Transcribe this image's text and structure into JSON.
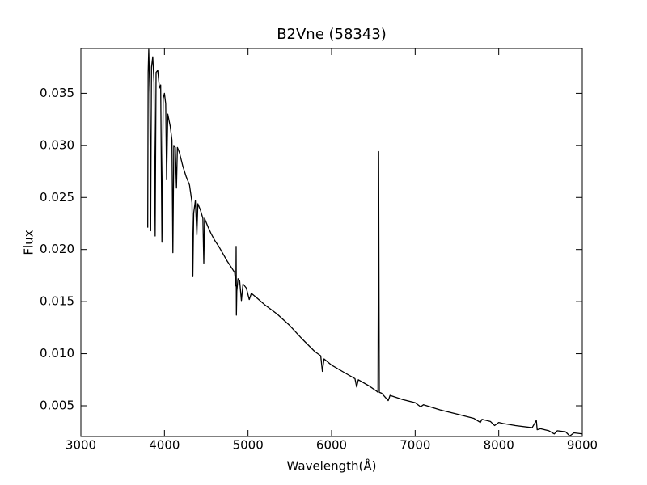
{
  "chart_data": {
    "type": "line",
    "title": "B2Vne (58343)",
    "x_label": "Wavelength(Å)",
    "y_label": "Flux",
    "xlim": [
      3000,
      9000
    ],
    "xticks": [
      3000,
      4000,
      5000,
      6000,
      7000,
      8000,
      9000
    ],
    "ylim": [
      0.00205,
      0.0393
    ],
    "yticks": [
      0.005,
      {
        "value": 0.01,
        "label": "0.010"
      },
      0.015,
      {
        "value": 0.02,
        "label": "0.020"
      },
      0.025,
      {
        "value": 0.03,
        "label": "0.030"
      },
      0.035
    ],
    "grid": false,
    "series": [
      {
        "name": "B2Vne (58343)",
        "color": "#000000",
        "x": [
          3800,
          3805,
          3812,
          3825,
          3835,
          3845,
          3860,
          3875,
          3889,
          3900,
          3920,
          3940,
          3955,
          3970,
          3985,
          4000,
          4015,
          4026,
          4040,
          4070,
          4090,
          4101,
          4112,
          4130,
          4144,
          4155,
          4180,
          4220,
          4260,
          4300,
          4330,
          4340,
          4350,
          4370,
          4388,
          4400,
          4430,
          4460,
          4471,
          4480,
          4520,
          4560,
          4600,
          4650,
          4700,
          4750,
          4800,
          4840,
          4855,
          4858,
          4861,
          4866,
          4880,
          4900,
          4921,
          4940,
          4980,
          5015,
          5040,
          5100,
          5200,
          5350,
          5500,
          5650,
          5800,
          5870,
          5890,
          5910,
          6000,
          6150,
          6280,
          6300,
          6320,
          6450,
          6540,
          6555,
          6563,
          6571,
          6600,
          6678,
          6700,
          6850,
          7000,
          7065,
          7100,
          7300,
          7500,
          7700,
          7780,
          7800,
          7900,
          7950,
          8000,
          8050,
          8200,
          8400,
          8450,
          8460,
          8500,
          8600,
          8665,
          8700,
          8800,
          8850,
          8900,
          9000
        ],
        "values": [
          0.0221,
          0.037,
          0.0392,
          0.035,
          0.0218,
          0.0375,
          0.0385,
          0.036,
          0.0213,
          0.037,
          0.0372,
          0.0355,
          0.0358,
          0.0207,
          0.0345,
          0.035,
          0.034,
          0.0267,
          0.033,
          0.0318,
          0.0305,
          0.0197,
          0.03,
          0.0298,
          0.0259,
          0.0298,
          0.0293,
          0.028,
          0.027,
          0.0262,
          0.0245,
          0.0174,
          0.0235,
          0.0247,
          0.0214,
          0.0244,
          0.0238,
          0.023,
          0.0187,
          0.023,
          0.0222,
          0.0215,
          0.0209,
          0.0203,
          0.0196,
          0.0189,
          0.0183,
          0.0178,
          0.0165,
          0.0203,
          0.0137,
          0.016,
          0.0172,
          0.017,
          0.0151,
          0.0167,
          0.0163,
          0.0152,
          0.0158,
          0.0154,
          0.0147,
          0.0138,
          0.0127,
          0.0114,
          0.0102,
          0.0098,
          0.0083,
          0.0095,
          0.0089,
          0.0082,
          0.0076,
          0.0068,
          0.0075,
          0.0069,
          0.0064,
          0.0063,
          0.0294,
          0.0063,
          0.0062,
          0.0055,
          0.006,
          0.0056,
          0.0053,
          0.0049,
          0.0051,
          0.0046,
          0.0042,
          0.0038,
          0.0034,
          0.0037,
          0.0035,
          0.0031,
          0.0034,
          0.0033,
          0.0031,
          0.0029,
          0.0036,
          0.0027,
          0.0028,
          0.0026,
          0.0023,
          0.0026,
          0.0025,
          0.0021,
          0.0024,
          0.0023
        ]
      }
    ]
  }
}
